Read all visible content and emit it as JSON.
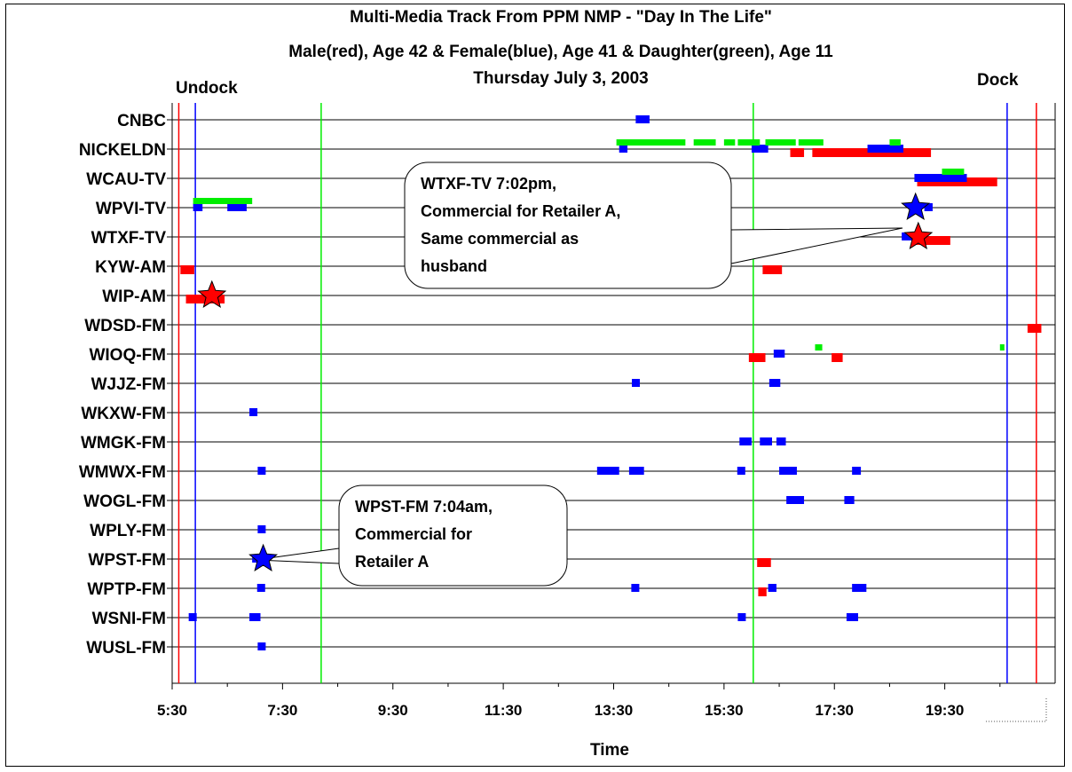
{
  "chart_data": {
    "type": "scatter",
    "title": "Multi-Media Track From PPM NMP - \"Day In The Life\"",
    "subtitle": "Male(red), Age 42 & Female(blue), Age 41 & Daughter(green), Age 11",
    "date": "Thursday July 3, 2003",
    "xlabel": "Time",
    "x_ticks": [
      "5:30",
      "7:30",
      "9:30",
      "11:30",
      "13:30",
      "15:30",
      "17:30",
      "19:30"
    ],
    "xlim_hours": [
      5.5,
      21.5
    ],
    "categories": [
      "CNBC",
      "NICKELDN",
      "WCAU-TV",
      "WPVI-TV",
      "WTXF-TV",
      "KYW-AM",
      "WIP-AM",
      "WDSD-FM",
      "WIOQ-FM",
      "WJJZ-FM",
      "WKXW-FM",
      "WMGK-FM",
      "WMWX-FM",
      "WOGL-FM",
      "WPLY-FM",
      "WPST-FM",
      "WPTP-FM",
      "WSNI-FM",
      "WUSL-FM"
    ],
    "colors": {
      "male": "#ff0000",
      "female": "#0000ff",
      "daughter": "#00ee00"
    },
    "series": [
      {
        "key": "male",
        "segments": [
          {
            "cat": "NICKELDN",
            "start": 16.7,
            "end": 16.95
          },
          {
            "cat": "NICKELDN",
            "start": 17.1,
            "end": 19.25
          },
          {
            "cat": "WCAU-TV",
            "start": 19.0,
            "end": 20.45
          },
          {
            "cat": "WTXF-TV",
            "start": 18.9,
            "end": 19.6
          },
          {
            "cat": "KYW-AM",
            "start": 5.65,
            "end": 5.9
          },
          {
            "cat": "KYW-AM",
            "start": 16.2,
            "end": 16.55
          },
          {
            "cat": "WIP-AM",
            "start": 5.75,
            "end": 6.45
          },
          {
            "cat": "WDSD-FM",
            "start": 21.0,
            "end": 21.25
          },
          {
            "cat": "WIOQ-FM",
            "start": 15.95,
            "end": 16.25
          },
          {
            "cat": "WIOQ-FM",
            "start": 17.45,
            "end": 17.65
          },
          {
            "cat": "WPST-FM",
            "start": 16.1,
            "end": 16.35
          },
          {
            "cat": "WPTP-FM",
            "start": 16.12,
            "end": 16.27
          }
        ]
      },
      {
        "key": "female",
        "segments": [
          {
            "cat": "CNBC",
            "start": 13.9,
            "end": 14.15
          },
          {
            "cat": "NICKELDN",
            "start": 13.6,
            "end": 13.75
          },
          {
            "cat": "NICKELDN",
            "start": 16.0,
            "end": 16.3
          },
          {
            "cat": "NICKELDN",
            "start": 18.1,
            "end": 18.75
          },
          {
            "cat": "WCAU-TV",
            "start": 18.95,
            "end": 19.9
          },
          {
            "cat": "WPVI-TV",
            "start": 5.88,
            "end": 6.05
          },
          {
            "cat": "WPVI-TV",
            "start": 6.5,
            "end": 6.85
          },
          {
            "cat": "WPVI-TV",
            "start": 19.13,
            "end": 19.28
          },
          {
            "cat": "WTXF-TV",
            "start": 18.72,
            "end": 19.05
          },
          {
            "cat": "WIOQ-FM",
            "start": 16.4,
            "end": 16.6
          },
          {
            "cat": "WJJZ-FM",
            "start": 13.83,
            "end": 13.95
          },
          {
            "cat": "WJJZ-FM",
            "start": 16.32,
            "end": 16.52
          },
          {
            "cat": "WKXW-FM",
            "start": 6.9,
            "end": 7.03
          },
          {
            "cat": "WMGK-FM",
            "start": 15.78,
            "end": 16.0
          },
          {
            "cat": "WMGK-FM",
            "start": 16.15,
            "end": 16.37
          },
          {
            "cat": "WMGK-FM",
            "start": 16.45,
            "end": 16.62
          },
          {
            "cat": "WMWX-FM",
            "start": 7.05,
            "end": 7.18
          },
          {
            "cat": "WMWX-FM",
            "start": 13.2,
            "end": 13.6
          },
          {
            "cat": "WMWX-FM",
            "start": 13.78,
            "end": 14.05
          },
          {
            "cat": "WMWX-FM",
            "start": 15.74,
            "end": 15.88
          },
          {
            "cat": "WMWX-FM",
            "start": 16.5,
            "end": 16.82
          },
          {
            "cat": "WMWX-FM",
            "start": 17.82,
            "end": 17.98
          },
          {
            "cat": "WOGL-FM",
            "start": 16.63,
            "end": 16.95
          },
          {
            "cat": "WOGL-FM",
            "start": 17.68,
            "end": 17.86
          },
          {
            "cat": "WPLY-FM",
            "start": 7.05,
            "end": 7.18
          },
          {
            "cat": "WPST-FM",
            "start": 6.95,
            "end": 7.08
          },
          {
            "cat": "WPTP-FM",
            "start": 7.04,
            "end": 7.17
          },
          {
            "cat": "WPTP-FM",
            "start": 13.82,
            "end": 13.95
          },
          {
            "cat": "WPTP-FM",
            "start": 16.3,
            "end": 16.45
          },
          {
            "cat": "WPTP-FM",
            "start": 17.82,
            "end": 18.08
          },
          {
            "cat": "WSNI-FM",
            "start": 5.8,
            "end": 5.94
          },
          {
            "cat": "WSNI-FM",
            "start": 6.9,
            "end": 7.1
          },
          {
            "cat": "WSNI-FM",
            "start": 15.75,
            "end": 15.88
          },
          {
            "cat": "WSNI-FM",
            "start": 17.72,
            "end": 17.93
          },
          {
            "cat": "WUSL-FM",
            "start": 7.05,
            "end": 7.18
          }
        ]
      },
      {
        "key": "daughter",
        "segments": [
          {
            "cat": "NICKELDN",
            "start": 13.55,
            "end": 14.8
          },
          {
            "cat": "NICKELDN",
            "start": 14.95,
            "end": 15.35
          },
          {
            "cat": "NICKELDN",
            "start": 15.5,
            "end": 15.7
          },
          {
            "cat": "NICKELDN",
            "start": 15.75,
            "end": 16.15
          },
          {
            "cat": "NICKELDN",
            "start": 16.25,
            "end": 16.8
          },
          {
            "cat": "NICKELDN",
            "start": 16.85,
            "end": 17.3
          },
          {
            "cat": "NICKELDN",
            "start": 18.5,
            "end": 18.7
          },
          {
            "cat": "WCAU-TV",
            "start": 19.45,
            "end": 19.85
          },
          {
            "cat": "WPVI-TV",
            "start": 5.88,
            "end": 6.95
          },
          {
            "cat": "WIOQ-FM",
            "start": 17.15,
            "end": 17.28
          },
          {
            "cat": "WIOQ-FM",
            "start": 20.5,
            "end": 20.58
          }
        ]
      }
    ],
    "vlines": [
      {
        "label": "Undock",
        "x": 5.62,
        "color": "#ff0000"
      },
      {
        "label": "",
        "x": 5.92,
        "color": "#0000ff"
      },
      {
        "label": "",
        "x": 8.2,
        "color": "#00ee00"
      },
      {
        "label": "",
        "x": 16.03,
        "color": "#00ee00"
      },
      {
        "label": "",
        "x": 20.63,
        "color": "#0000ff"
      },
      {
        "label": "Dock",
        "x": 21.16,
        "color": "#ff0000"
      }
    ],
    "markers": [
      {
        "cat": "WIP-AM",
        "x": 6.22,
        "color": "#ff0000"
      },
      {
        "cat": "WPST-FM",
        "x": 7.15,
        "color": "#0000ff"
      },
      {
        "cat": "WPVI-TV",
        "x": 18.97,
        "color": "#0000ff"
      },
      {
        "cat": "WTXF-TV",
        "x": 19.02,
        "color": "#ff0000"
      }
    ],
    "annotations": [
      {
        "lines": [
          "WTXF-TV 7:02pm,",
          "Commercial for Retailer A,",
          "Same commercial as",
          "husband"
        ]
      },
      {
        "lines": [
          "WPST-FM  7:04am,",
          "Commercial for",
          "Retailer A"
        ]
      }
    ],
    "labels": {
      "undock": "Undock",
      "dock": "Dock"
    },
    "grid": true,
    "legend": "none"
  }
}
